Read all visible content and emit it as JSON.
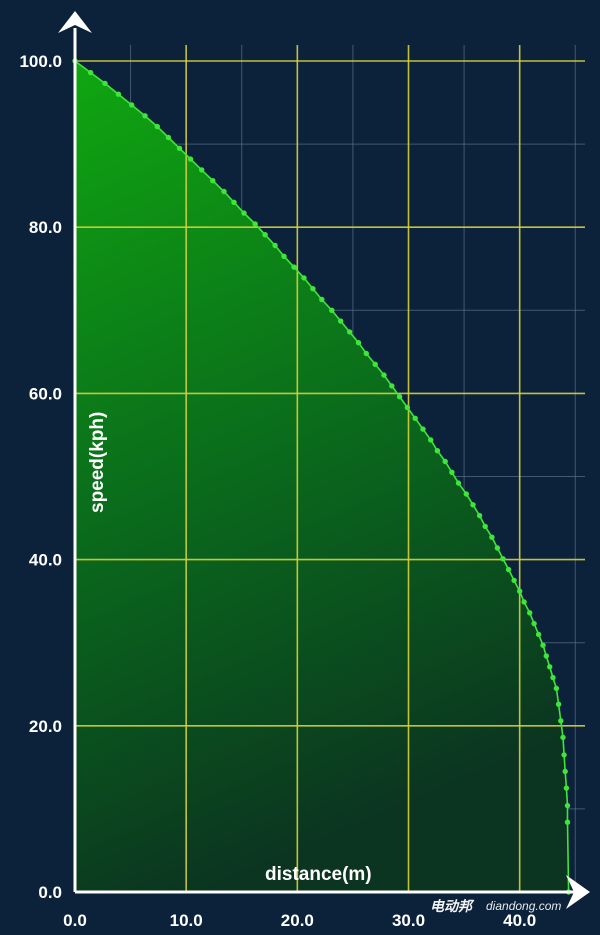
{
  "chart_data": {
    "type": "area",
    "xlabel": "distance(m)",
    "ylabel": "speed(kph)",
    "xlim": [
      0,
      45
    ],
    "ylim": [
      0,
      100
    ],
    "x_ticks": [
      "0.0",
      "10.0",
      "20.0",
      "30.0",
      "40.0"
    ],
    "y_ticks": [
      "0.0",
      "20.0",
      "40.0",
      "60.0",
      "80.0",
      "100.0"
    ],
    "grid": true,
    "legend": "none",
    "colors": {
      "background": "#0b223a",
      "major_grid": "#d8d23a",
      "minor_grid": "#5d6f86",
      "line": "#3ee63a",
      "fill_top": "#10a810",
      "fill_bottom": "#0b3520",
      "axis": "#ffffff"
    },
    "series": [
      {
        "x": [
          0.0,
          1.4,
          2.7,
          3.9,
          5.1,
          6.3,
          7.4,
          8.4,
          9.4,
          10.4,
          11.4,
          12.4,
          13.4,
          14.3,
          15.2,
          16.2,
          17.1,
          18.0,
          18.8,
          19.7,
          20.6,
          21.4,
          22.2,
          23.1,
          23.9,
          24.7,
          25.5,
          26.2,
          27.0,
          27.8,
          28.5,
          29.2,
          29.9,
          30.6,
          31.3,
          32.0,
          32.6,
          33.3,
          33.9,
          34.5,
          35.2,
          35.8,
          36.4,
          36.9,
          37.5,
          38.0,
          38.5,
          39.0,
          39.5,
          40.0,
          40.4,
          40.9,
          41.3,
          41.7,
          42.1,
          42.4,
          42.7,
          43.0,
          43.3,
          43.5,
          43.7,
          43.9,
          44.0,
          44.1,
          44.2,
          44.3,
          44.3,
          44.4
        ],
        "y": [
          100.0,
          98.6,
          97.3,
          96.0,
          94.7,
          93.4,
          92.1,
          90.8,
          89.5,
          88.2,
          86.9,
          85.6,
          84.3,
          83.0,
          81.7,
          80.4,
          79.1,
          77.8,
          76.5,
          75.2,
          73.9,
          72.6,
          71.3,
          70.0,
          68.7,
          67.4,
          66.1,
          64.8,
          63.5,
          62.2,
          60.9,
          59.6,
          58.3,
          57.0,
          55.7,
          54.4,
          53.1,
          51.8,
          50.5,
          49.2,
          47.9,
          46.6,
          45.3,
          44.0,
          42.7,
          41.4,
          40.1,
          38.8,
          37.5,
          36.2,
          34.9,
          33.6,
          32.3,
          31.0,
          29.7,
          28.4,
          27.1,
          25.8,
          24.5,
          22.6,
          20.6,
          18.6,
          16.5,
          14.5,
          12.5,
          10.4,
          8.4,
          0.0
        ]
      }
    ]
  },
  "watermark": {
    "brand": "电动邦",
    "site": "diandong.com"
  }
}
